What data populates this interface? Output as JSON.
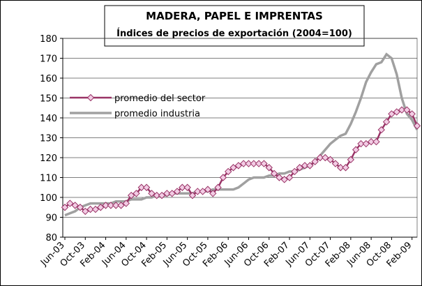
{
  "chart_data": {
    "type": "line",
    "title": "MADERA, PAPEL E IMPRENTAS",
    "subtitle": "Índices de precios de exportación (2004=100)",
    "categories": [
      "Jun-03",
      null,
      null,
      null,
      "Oct-03",
      null,
      null,
      null,
      "Feb-04",
      null,
      null,
      null,
      "Jun-04",
      null,
      null,
      null,
      "Oct-04",
      null,
      null,
      null,
      "Feb-05",
      null,
      null,
      null,
      "Jun-05",
      null,
      null,
      null,
      "Oct-05",
      null,
      null,
      null,
      "Feb-06",
      null,
      null,
      null,
      "Jun-06",
      null,
      null,
      null,
      "Oct-06",
      null,
      null,
      null,
      "Feb-07",
      null,
      null,
      null,
      "Jun-07",
      null,
      null,
      null,
      "Oct-07",
      null,
      null,
      null,
      "Feb-08",
      null,
      null,
      null,
      "Jun-08",
      null,
      null,
      null,
      "Oct-08",
      null,
      null,
      null,
      "Feb-09",
      null
    ],
    "series": [
      {
        "name": "promedio del sector",
        "color": "#993366",
        "marker": "diamond",
        "values": [
          95,
          97,
          96,
          95,
          93,
          94,
          94,
          95,
          96,
          96,
          96,
          96,
          97,
          101,
          102,
          105,
          105,
          102,
          101,
          101,
          102,
          102,
          103,
          105,
          105,
          101,
          103,
          103,
          104,
          102,
          105,
          110,
          113,
          115,
          116,
          117,
          117,
          117,
          117,
          117,
          115,
          112,
          110,
          109,
          110,
          113,
          115,
          116,
          116,
          118,
          120,
          120,
          119,
          117,
          115,
          115,
          119,
          124,
          127,
          127,
          128,
          128,
          134,
          138,
          142,
          143,
          144,
          144,
          142,
          136
        ]
      },
      {
        "name": "promedio industria",
        "color": "#a0a0a0",
        "values": [
          91,
          92,
          93,
          95,
          96,
          97,
          97,
          97,
          97,
          97,
          98,
          98,
          98,
          99,
          99,
          99,
          100,
          100,
          101,
          101,
          101,
          102,
          102,
          102,
          102,
          102,
          103,
          103,
          103,
          104,
          104,
          104,
          104,
          104,
          105,
          107,
          109,
          110,
          110,
          110,
          111,
          111,
          112,
          112,
          113,
          113,
          114,
          115,
          116,
          118,
          121,
          124,
          127,
          129,
          131,
          132,
          137,
          143,
          150,
          158,
          163,
          167,
          168,
          172,
          170,
          162,
          150,
          142,
          139,
          134
        ]
      }
    ],
    "ylim": [
      80,
      180
    ],
    "yticks": [
      80,
      90,
      100,
      110,
      120,
      130,
      140,
      150,
      160,
      170,
      180
    ],
    "grid": true
  }
}
